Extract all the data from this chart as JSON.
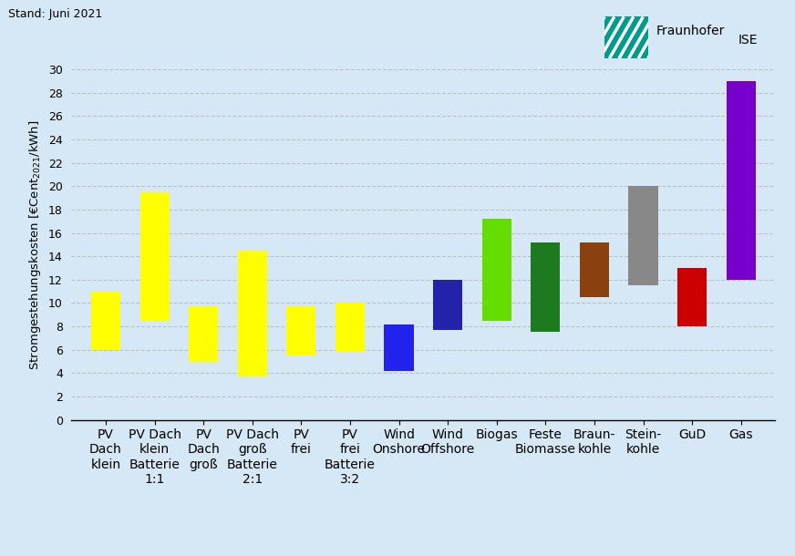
{
  "categories": [
    "PV\nDach\nklein",
    "PV Dach\nklein\nBatterie\n1:1",
    "PV\nDach\ngroß",
    "PV Dach\ngroß\nBatterie\n2:1",
    "PV\nfrei",
    "PV\nfrei\nBatterie\n3:2",
    "Wind\nOnshore",
    "Wind\nOffshore",
    "Biogas",
    "Feste\nBiomasse",
    "Braun-\nkohle",
    "Stein-\nkohle",
    "GuD",
    "Gas"
  ],
  "bar_min": [
    6.0,
    8.5,
    5.0,
    3.7,
    5.5,
    5.8,
    4.2,
    7.7,
    8.5,
    7.5,
    10.5,
    11.5,
    8.0,
    12.0
  ],
  "bar_max": [
    11.0,
    19.5,
    9.7,
    14.5,
    9.7,
    10.0,
    8.2,
    12.0,
    17.2,
    15.2,
    15.2,
    20.0,
    13.0,
    29.0
  ],
  "colors": [
    "#FFFF00",
    "#FFFF00",
    "#FFFF00",
    "#FFFF00",
    "#FFFF00",
    "#FFFF00",
    "#2222EE",
    "#2222AA",
    "#66DD00",
    "#1E7A1E",
    "#8B4010",
    "#888888",
    "#CC0000",
    "#7700CC"
  ],
  "ylabel": "Stromgestehungskosten [€Cent$_{2021}$/kWh]",
  "ylim": [
    0,
    30
  ],
  "yticks": [
    0,
    2,
    4,
    6,
    8,
    10,
    12,
    14,
    16,
    18,
    20,
    22,
    24,
    26,
    28,
    30
  ],
  "background_color": "#D6E8F5",
  "grid_color": "#AAAAAA",
  "top_label": "Stand: Juni 2021",
  "bar_width": 0.6,
  "fraunhofer_text": "Fraunhofer",
  "ise_text": "ISE",
  "logo_color": "#009B8D"
}
